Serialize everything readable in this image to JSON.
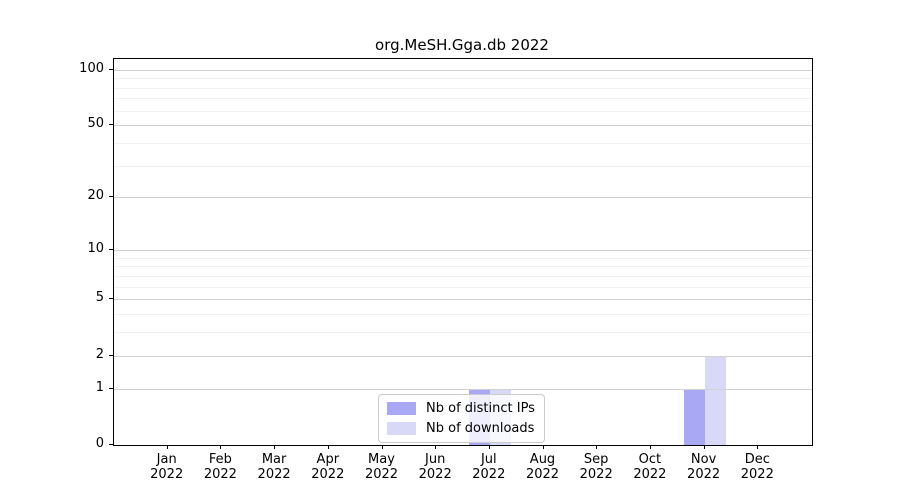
{
  "chart_data": {
    "type": "bar",
    "title": "org.MeSH.Gga.db 2022",
    "categories": [
      "Jan 2022",
      "Feb 2022",
      "Mar 2022",
      "Apr 2022",
      "May 2022",
      "Jun 2022",
      "Jul 2022",
      "Aug 2022",
      "Sep 2022",
      "Oct 2022",
      "Nov 2022",
      "Dec 2022"
    ],
    "series": [
      {
        "name": "Nb of distinct IPs",
        "color": "#a8a8f4",
        "values": [
          0,
          0,
          0,
          0,
          0,
          0,
          1,
          0,
          0,
          0,
          1,
          0
        ]
      },
      {
        "name": "Nb of downloads",
        "color": "#d8d8f7",
        "values": [
          0,
          0,
          0,
          0,
          0,
          0,
          1,
          0,
          0,
          0,
          2,
          0
        ]
      }
    ],
    "yscale": "log10(1+x)",
    "ylim": [
      0,
      114
    ],
    "y_ticks": [
      0,
      1,
      2,
      5,
      10,
      20,
      50,
      100
    ],
    "y_minor_ticks": [
      3,
      4,
      6,
      7,
      8,
      9,
      30,
      40,
      60,
      70,
      80,
      90
    ],
    "grid": "horizontal",
    "legend_position": "lower-center",
    "colors": {
      "axis": "#000000",
      "grid_major": "#d2d2d2",
      "grid_minor": "#f0f0f0",
      "background": "#ffffff"
    }
  }
}
